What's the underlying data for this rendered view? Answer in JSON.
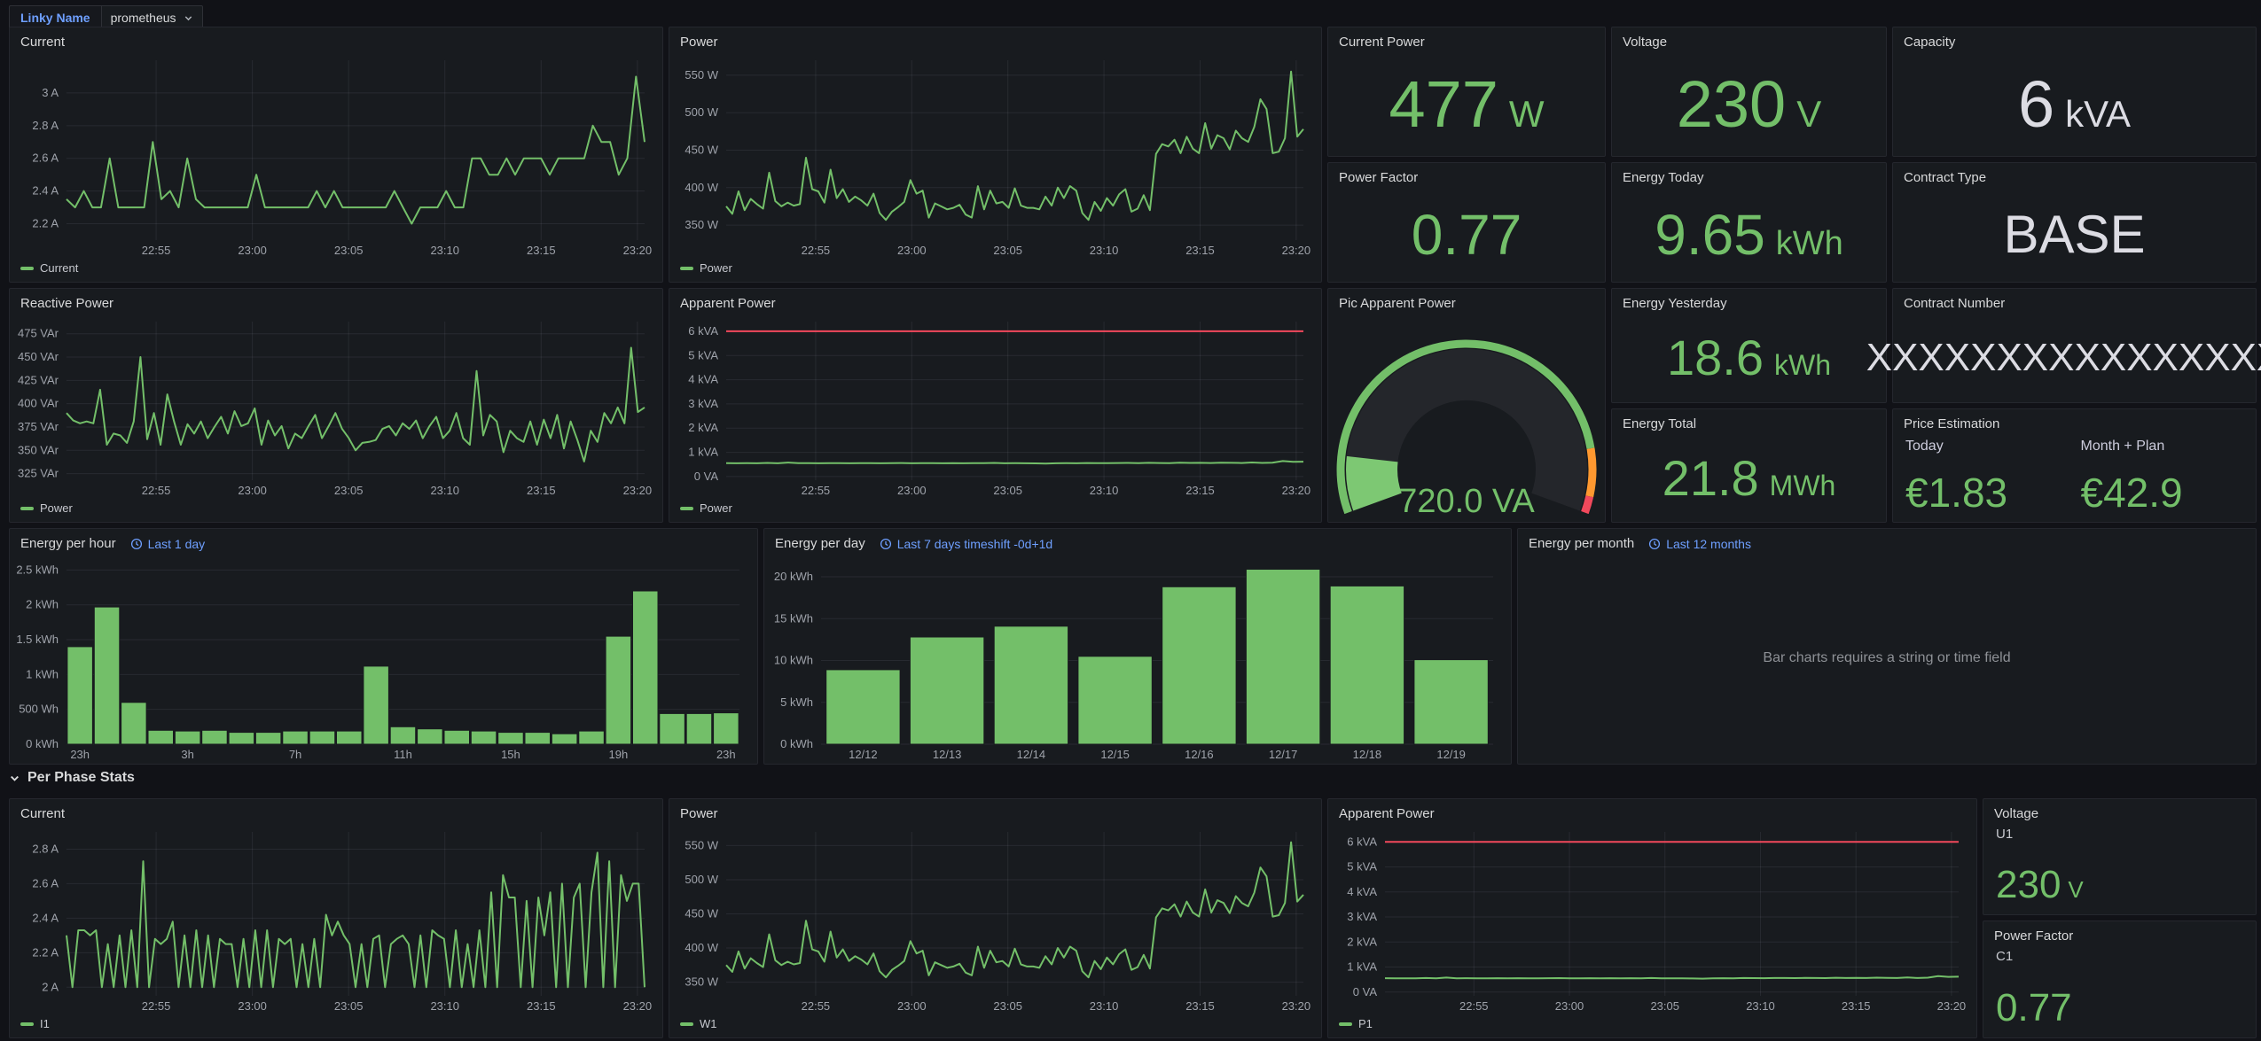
{
  "colors": {
    "green": "#73BF69",
    "orange": "#FF9830",
    "red": "#F2495C",
    "link_blue": "#6E9FFF",
    "panel_bg": "#181b1f",
    "page_bg": "#111217"
  },
  "variables": {
    "label": "Linky Name",
    "value": "prometheus"
  },
  "row_header": {
    "title": "Per Phase Stats"
  },
  "panels": {
    "current1": {
      "title": "Current",
      "legend": "Current"
    },
    "power1": {
      "title": "Power",
      "legend": "Power"
    },
    "reactive": {
      "title": "Reactive Power",
      "legend": "Power"
    },
    "apparent1": {
      "title": "Apparent Power",
      "legend": "Power"
    },
    "gauge": {
      "title": "Pic Apparent Power",
      "value": "720.0 VA"
    },
    "stat_current_power": {
      "title": "Current Power",
      "value": "477",
      "unit": "W"
    },
    "stat_voltage": {
      "title": "Voltage",
      "value": "230",
      "unit": "V"
    },
    "stat_capacity": {
      "title": "Capacity",
      "value": "6",
      "unit": "kVA"
    },
    "stat_power_factor": {
      "title": "Power Factor",
      "value": "0.77",
      "unit": ""
    },
    "stat_energy_today": {
      "title": "Energy Today",
      "value": "9.65",
      "unit": "kWh"
    },
    "stat_contract_type": {
      "title": "Contract Type",
      "value": "BASE"
    },
    "stat_energy_yesterday": {
      "title": "Energy Yesterday",
      "value": "18.6",
      "unit": "kWh"
    },
    "stat_contract_number": {
      "title": "Contract Number",
      "value": "XXXXXXXXXXXXXXXX"
    },
    "stat_energy_total": {
      "title": "Energy Total",
      "value": "21.8",
      "unit": "MWh"
    },
    "price": {
      "title": "Price Estimation",
      "items": [
        {
          "label": "Today",
          "value": "€1.83"
        },
        {
          "label": "Month + Plan",
          "value": "€42.9"
        }
      ]
    },
    "hour": {
      "title": "Energy per hour",
      "link": "Last 1 day"
    },
    "day": {
      "title": "Energy per day",
      "link": "Last 7 days timeshift -0d+1d"
    },
    "month": {
      "title": "Energy per month",
      "link": "Last 12 months",
      "message": "Bar charts requires a string or time field"
    },
    "current2": {
      "title": "Current",
      "legend": "I1"
    },
    "power2": {
      "title": "Power",
      "legend": "W1"
    },
    "apparent2": {
      "title": "Apparent Power",
      "legend": "P1"
    },
    "stat_voltage2": {
      "title": "Voltage",
      "sublabel": "U1",
      "value": "230",
      "unit": "V"
    },
    "stat_pf2": {
      "title": "Power Factor",
      "sublabel": "C1",
      "value": "0.77",
      "unit": ""
    }
  },
  "time_xticks": [
    {
      "f": 0.155,
      "label": "22:55"
    },
    {
      "f": 0.3215,
      "label": "23:00"
    },
    {
      "f": 0.488,
      "label": "23:05"
    },
    {
      "f": 0.6545,
      "label": "23:10"
    },
    {
      "f": 0.821,
      "label": "23:15"
    },
    {
      "f": 0.9875,
      "label": "23:20"
    }
  ],
  "chart_data": {
    "current1": {
      "type": "line",
      "ymin": 2.1,
      "ymax": 3.2,
      "yticks": [
        {
          "v": 2.2,
          "label": "2.2 A"
        },
        {
          "v": 2.4,
          "label": "2.4 A"
        },
        {
          "v": 2.6,
          "label": "2.6 A"
        },
        {
          "v": 2.8,
          "label": "2.8 A"
        },
        {
          "v": 3.0,
          "label": "3 A"
        }
      ],
      "values": [
        2.35,
        2.3,
        2.4,
        2.3,
        2.3,
        2.6,
        2.3,
        2.3,
        2.3,
        2.3,
        2.7,
        2.35,
        2.4,
        2.3,
        2.6,
        2.35,
        2.3,
        2.3,
        2.3,
        2.3,
        2.3,
        2.3,
        2.5,
        2.3,
        2.3,
        2.3,
        2.3,
        2.3,
        2.3,
        2.4,
        2.3,
        2.4,
        2.3,
        2.3,
        2.3,
        2.3,
        2.3,
        2.3,
        2.4,
        2.3,
        2.2,
        2.3,
        2.3,
        2.3,
        2.4,
        2.3,
        2.3,
        2.6,
        2.6,
        2.5,
        2.5,
        2.6,
        2.5,
        2.6,
        2.6,
        2.6,
        2.5,
        2.6,
        2.6,
        2.6,
        2.6,
        2.8,
        2.7,
        2.7,
        2.5,
        2.6,
        3.1,
        2.7
      ]
    },
    "power1": {
      "type": "line",
      "ymin": 330,
      "ymax": 570,
      "yticks": [
        {
          "v": 350,
          "label": "350 W"
        },
        {
          "v": 400,
          "label": "400 W"
        },
        {
          "v": 450,
          "label": "450 W"
        },
        {
          "v": 500,
          "label": "500 W"
        },
        {
          "v": 550,
          "label": "550 W"
        }
      ],
      "values": [
        375,
        365,
        395,
        370,
        385,
        378,
        372,
        420,
        382,
        375,
        380,
        376,
        378,
        440,
        398,
        395,
        380,
        424,
        386,
        398,
        381,
        388,
        383,
        376,
        392,
        366,
        357,
        368,
        374,
        381,
        410,
        392,
        396,
        360,
        379,
        375,
        371,
        373,
        377,
        364,
        360,
        402,
        371,
        396,
        379,
        381,
        373,
        399,
        376,
        373,
        373,
        371,
        388,
        376,
        400,
        386,
        402,
        396,
        366,
        357,
        381,
        369,
        386,
        376,
        391,
        398,
        368,
        372,
        390,
        370,
        445,
        458,
        455,
        464,
        446,
        468,
        452,
        446,
        486,
        452,
        470,
        466,
        451,
        476,
        466,
        461,
        481,
        518,
        505,
        446,
        448,
        466,
        555,
        468,
        478
      ]
    },
    "reactive": {
      "type": "line",
      "ymin": 318,
      "ymax": 488,
      "yticks": [
        {
          "v": 325,
          "label": "325 VAr"
        },
        {
          "v": 350,
          "label": "350 VAr"
        },
        {
          "v": 375,
          "label": "375 VAr"
        },
        {
          "v": 400,
          "label": "400 VAr"
        },
        {
          "v": 425,
          "label": "425 VAr"
        },
        {
          "v": 450,
          "label": "450 VAr"
        },
        {
          "v": 475,
          "label": "475 VAr"
        }
      ],
      "values": [
        390,
        382,
        379,
        381,
        379,
        415,
        356,
        368,
        366,
        358,
        381,
        450,
        362,
        390,
        356,
        410,
        381,
        356,
        378,
        368,
        381,
        363,
        375,
        386,
        368,
        392,
        376,
        379,
        395,
        356,
        382,
        366,
        376,
        352,
        368,
        363,
        376,
        388,
        363,
        376,
        390,
        373,
        363,
        350,
        358,
        359,
        361,
        373,
        376,
        366,
        379,
        373,
        382,
        363,
        376,
        386,
        363,
        371,
        390,
        363,
        356,
        435,
        366,
        388,
        381,
        348,
        371,
        363,
        359,
        381,
        356,
        383,
        363,
        388,
        352,
        381,
        361,
        338,
        371,
        359,
        390,
        379,
        396,
        379,
        460,
        391,
        396
      ]
    },
    "apparent1": {
      "type": "line",
      "ymin": -150,
      "ymax": 6400,
      "threshold": {
        "v": 6000
      },
      "yticks": [
        {
          "v": 0,
          "label": "0 VA"
        },
        {
          "v": 1000,
          "label": "1 kVA"
        },
        {
          "v": 2000,
          "label": "2 kVA"
        },
        {
          "v": 3000,
          "label": "3 kVA"
        },
        {
          "v": 4000,
          "label": "4 kVA"
        },
        {
          "v": 5000,
          "label": "5 kVA"
        },
        {
          "v": 6000,
          "label": "6 kVA"
        }
      ],
      "values": [
        555,
        548,
        552,
        549,
        562,
        548,
        578,
        551,
        553,
        548,
        551,
        556,
        548,
        553,
        551,
        548,
        553,
        559,
        548,
        551,
        553,
        548,
        556,
        549,
        553,
        551,
        562,
        548,
        551,
        548,
        545,
        536,
        548,
        553,
        548,
        561,
        558,
        556,
        561,
        563,
        558,
        566,
        561,
        558,
        573,
        563,
        568,
        561,
        576,
        566,
        561,
        583,
        563,
        576,
        641,
        606,
        616
      ]
    },
    "current2": {
      "type": "line",
      "ymin": 1.95,
      "ymax": 2.9,
      "yticks": [
        {
          "v": 2.0,
          "label": "2 A"
        },
        {
          "v": 2.2,
          "label": "2.2 A"
        },
        {
          "v": 2.4,
          "label": "2.4 A"
        },
        {
          "v": 2.6,
          "label": "2.6 A"
        },
        {
          "v": 2.8,
          "label": "2.8 A"
        }
      ],
      "values": [
        2.3,
        2.0,
        2.33,
        2.33,
        2.3,
        2.33,
        2.0,
        2.25,
        2.0,
        2.3,
        2.0,
        2.33,
        2.0,
        2.73,
        2.0,
        2.28,
        2.25,
        2.28,
        2.38,
        2.0,
        2.3,
        2.0,
        2.33,
        2.0,
        2.3,
        2.0,
        2.28,
        2.25,
        2.25,
        2.0,
        2.28,
        2.0,
        2.33,
        2.0,
        2.33,
        2.0,
        2.28,
        2.25,
        2.28,
        2.0,
        2.25,
        2.0,
        2.28,
        2.0,
        2.42,
        2.3,
        2.38,
        2.3,
        2.25,
        2.0,
        2.25,
        2.0,
        2.28,
        2.3,
        2.0,
        2.25,
        2.28,
        2.3,
        2.25,
        2.0,
        2.3,
        2.0,
        2.33,
        2.3,
        2.28,
        2.0,
        2.33,
        2.0,
        2.25,
        2.0,
        2.33,
        2.0,
        2.55,
        2.0,
        2.65,
        2.52,
        2.52,
        2.0,
        2.5,
        2.0,
        2.52,
        2.3,
        2.55,
        2.0,
        2.6,
        2.0,
        2.52,
        2.6,
        2.0,
        2.55,
        2.78,
        2.0,
        2.73,
        2.0,
        2.65,
        2.5,
        2.6,
        2.6,
        2.0
      ]
    },
    "power2": {
      "type": "line",
      "same_as": "power1"
    },
    "apparent2": {
      "type": "line",
      "same_as": "apparent1"
    },
    "hour": {
      "type": "bars",
      "ymin": 0,
      "ymax": 2.62,
      "gap": 0.06,
      "yticks": [
        {
          "v": 0,
          "label": "0 kWh"
        },
        {
          "v": 0.5,
          "label": "500 Wh"
        },
        {
          "v": 1,
          "label": "1 kWh"
        },
        {
          "v": 1.5,
          "label": "1.5 kWh"
        },
        {
          "v": 2,
          "label": "2 kWh"
        },
        {
          "v": 2.5,
          "label": "2.5 kWh"
        }
      ],
      "values": [
        1.4,
        1.97,
        0.6,
        0.2,
        0.19,
        0.2,
        0.17,
        0.17,
        0.19,
        0.19,
        0.19,
        1.12,
        0.25,
        0.22,
        0.2,
        0.19,
        0.17,
        0.17,
        0.15,
        0.19,
        1.55,
        2.2,
        0.44,
        0.44,
        0.45
      ],
      "bar_ticks": [
        {
          "i": 0,
          "label": "23h"
        },
        {
          "i": 4,
          "label": "3h"
        },
        {
          "i": 8,
          "label": "7h"
        },
        {
          "i": 12,
          "label": "11h"
        },
        {
          "i": 16,
          "label": "15h"
        },
        {
          "i": 20,
          "label": "19h"
        },
        {
          "i": 24,
          "label": "23h"
        }
      ]
    },
    "day": {
      "type": "bars",
      "ymin": 0,
      "ymax": 21.8,
      "gap": 0.12,
      "yticks": [
        {
          "v": 0,
          "label": "0 kWh"
        },
        {
          "v": 5,
          "label": "5 kWh"
        },
        {
          "v": 10,
          "label": "10 kWh"
        },
        {
          "v": 15,
          "label": "15 kWh"
        },
        {
          "v": 20,
          "label": "20 kWh"
        }
      ],
      "values": [
        8.9,
        12.8,
        14.1,
        10.5,
        18.8,
        20.9,
        18.9,
        10.1
      ],
      "bar_ticks": [
        {
          "i": 0,
          "label": "12/12"
        },
        {
          "i": 1,
          "label": "12/13"
        },
        {
          "i": 2,
          "label": "12/14"
        },
        {
          "i": 3,
          "label": "12/15"
        },
        {
          "i": 4,
          "label": "12/16"
        },
        {
          "i": 5,
          "label": "12/17"
        },
        {
          "i": 6,
          "label": "12/18"
        },
        {
          "i": 7,
          "label": "12/19"
        }
      ]
    },
    "gauge": {
      "frac": 0.12,
      "segments": [
        {
          "to": 0.865,
          "color": "#73BF69"
        },
        {
          "to": 0.965,
          "color": "#FF9830"
        },
        {
          "to": 1,
          "color": "#F2495C"
        }
      ]
    }
  }
}
